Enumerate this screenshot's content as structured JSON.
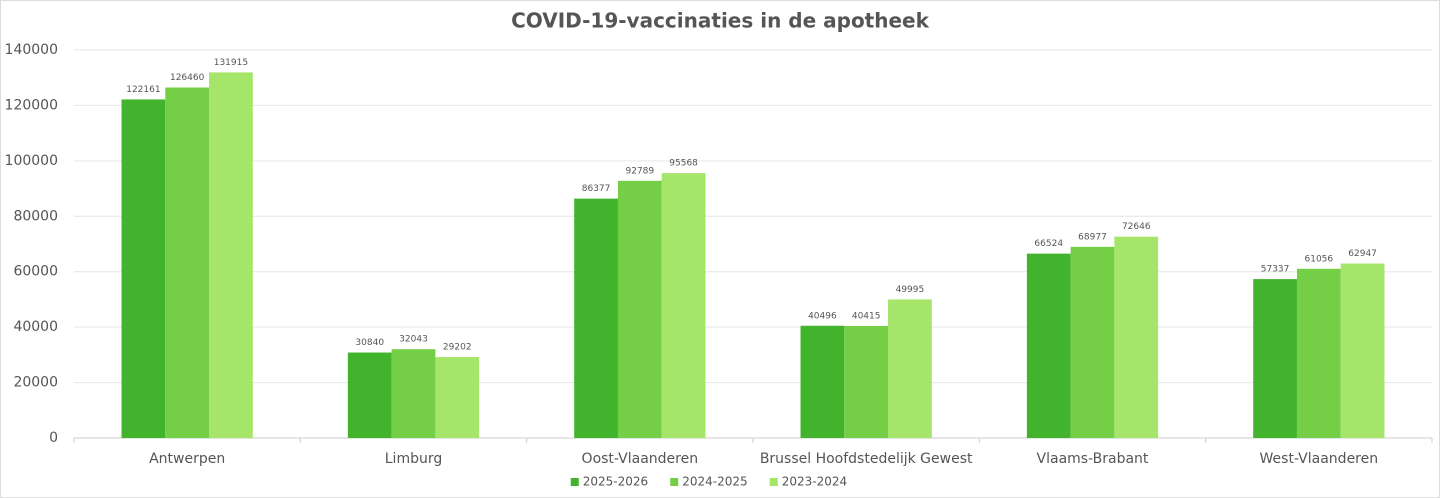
{
  "chart_data": {
    "type": "bar",
    "title": "COVID-19-vaccinaties in de apotheek",
    "categories": [
      "Antwerpen",
      "Limburg",
      "Oost-Vlaanderen",
      "Brussel Hoofdstedelijk Gewest",
      "Vlaams-Brabant",
      "West-Vlaanderen"
    ],
    "series": [
      {
        "name": "2025-2026",
        "color": "#41b32c",
        "values": [
          122161,
          30840,
          86377,
          40496,
          66524,
          57337
        ]
      },
      {
        "name": "2024-2025",
        "color": "#74ce46",
        "values": [
          126460,
          32043,
          92789,
          40415,
          68977,
          61056
        ]
      },
      {
        "name": "2023-2024",
        "color": "#a5e56a",
        "values": [
          131915,
          29202,
          95568,
          49995,
          72646,
          62947
        ]
      }
    ],
    "ylim": [
      0,
      140000
    ],
    "yticks": [
      0,
      20000,
      40000,
      60000,
      80000,
      100000,
      120000,
      140000
    ],
    "grid": true,
    "legend": "bottom"
  }
}
